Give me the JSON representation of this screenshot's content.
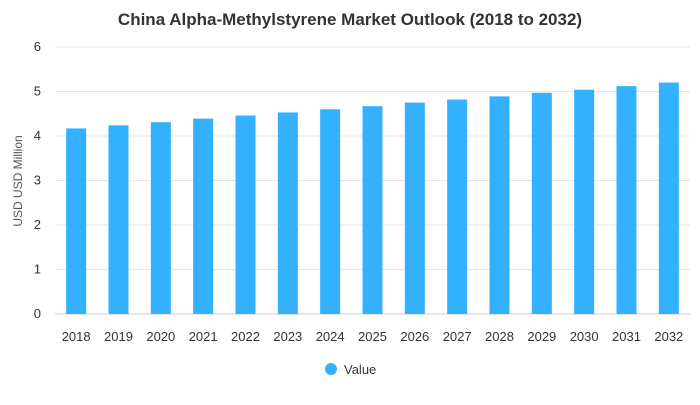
{
  "chart_data": {
    "type": "bar",
    "title": "China Alpha-Methylstyrene Market Outlook (2018 to 2032)",
    "xlabel": "",
    "ylabel": "USD USD Million",
    "ylim": [
      0,
      6
    ],
    "yticks": [
      0,
      1,
      2,
      3,
      4,
      5,
      6
    ],
    "grid": true,
    "legend_position": "bottom",
    "categories": [
      "2018",
      "2019",
      "2020",
      "2021",
      "2022",
      "2023",
      "2024",
      "2025",
      "2026",
      "2027",
      "2028",
      "2029",
      "2030",
      "2031",
      "2032"
    ],
    "series": [
      {
        "name": "Value",
        "color": "#33b1ff",
        "values": [
          4.17,
          4.24,
          4.31,
          4.39,
          4.46,
          4.53,
          4.6,
          4.67,
          4.75,
          4.82,
          4.89,
          4.97,
          5.04,
          5.12,
          5.2
        ]
      }
    ]
  },
  "colors": {
    "bar": "#33b1ff",
    "grid": "#e6e6e6",
    "axis_text": "#333333",
    "title": "#333333"
  }
}
